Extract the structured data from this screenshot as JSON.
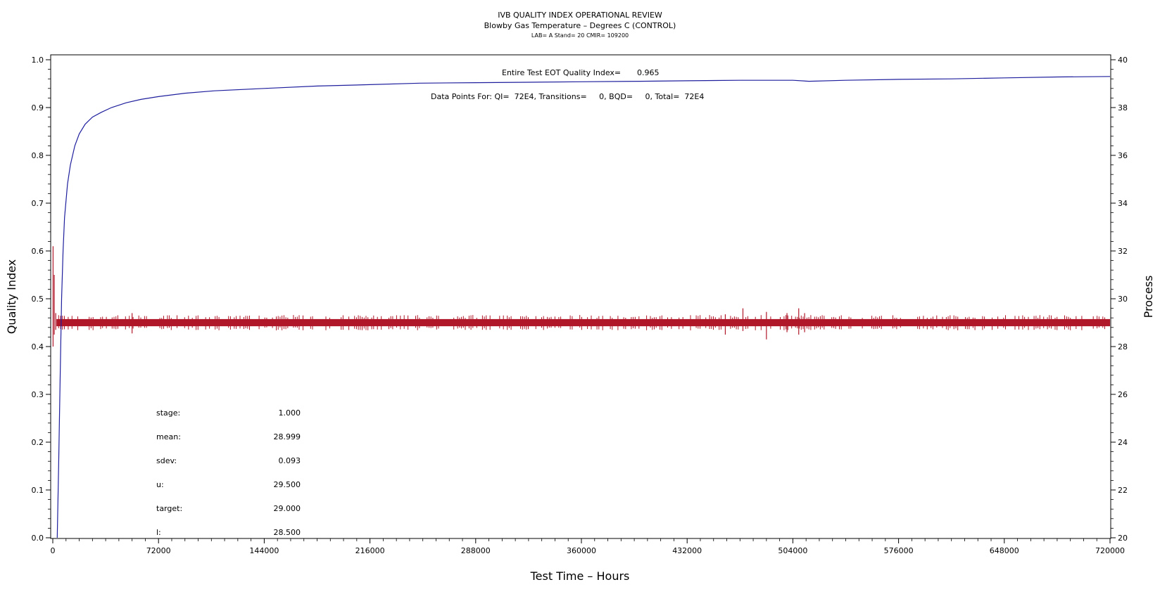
{
  "header": {
    "title": "IVB QUALITY INDEX OPERATIONAL REVIEW",
    "subtitle": "Blowby Gas Temperature – Degrees C (CONTROL)",
    "subsubtitle": "LAB= A Stand= 20 CMIR= 109200"
  },
  "annotations": {
    "eot_label": "Entire Test EOT Quality Index=",
    "eot_value": "0.965",
    "datapoints": "Data Points For: QI=  72E4, Transitions=     0, BQD=     0, Total=  72E4"
  },
  "stats": [
    {
      "label": "stage:",
      "value": "1.000"
    },
    {
      "label": "mean:",
      "value": "28.999"
    },
    {
      "label": "sdev:",
      "value": "0.093"
    },
    {
      "label": "u:",
      "value": "29.500"
    },
    {
      "label": "target:",
      "value": "29.000"
    },
    {
      "label": "l:",
      "value": "28.500"
    }
  ],
  "colors": {
    "quality_index": "#1f1f9e",
    "process": "#b0182a"
  },
  "chart_data": {
    "type": "line",
    "title": "IVB QUALITY INDEX OPERATIONAL REVIEW",
    "xlabel": "Test Time – Hours",
    "ylabel": "Quality Index",
    "y2label": "Process",
    "xlim": [
      0,
      720000
    ],
    "ylim": [
      0,
      1.0
    ],
    "y2lim": [
      20,
      40
    ],
    "x_ticks": [
      0,
      72000,
      144000,
      216000,
      288000,
      360000,
      432000,
      504000,
      576000,
      648000,
      720000
    ],
    "y_ticks": [
      "0.0",
      "0.1",
      "0.2",
      "0.3",
      "0.4",
      "0.5",
      "0.6",
      "0.7",
      "0.8",
      "0.9",
      "1.0"
    ],
    "y2_ticks": [
      20,
      22,
      24,
      26,
      28,
      30,
      32,
      34,
      36,
      38,
      40
    ],
    "grid": false,
    "series": [
      {
        "axis": "left",
        "x": [
          3000,
          4000,
          5000,
          6000,
          7000,
          8000,
          10000,
          12000,
          15000,
          18000,
          22000,
          27000,
          33000,
          40000,
          50000,
          60000,
          72000,
          90000,
          110000,
          144000,
          180000,
          216000,
          250000,
          288000,
          324000,
          360000,
          400000,
          432000,
          468000,
          504000,
          515000,
          540000,
          576000,
          612000,
          648000,
          684000,
          720000
        ],
        "values": [
          0.0,
          0.15,
          0.33,
          0.5,
          0.6,
          0.67,
          0.74,
          0.78,
          0.82,
          0.845,
          0.865,
          0.88,
          0.89,
          0.9,
          0.91,
          0.917,
          0.923,
          0.93,
          0.935,
          0.94,
          0.945,
          0.948,
          0.951,
          0.952,
          0.953,
          0.954,
          0.955,
          0.956,
          0.957,
          0.957,
          0.955,
          0.957,
          0.959,
          0.96,
          0.962,
          0.964,
          0.965
        ]
      },
      {
        "axis": "right",
        "mean": 28.999,
        "target": 29.0,
        "band": [
          28.85,
          29.15
        ],
        "spikes": [
          {
            "x": 200,
            "low": 28.0,
            "high": 32.2
          },
          {
            "x": 1000,
            "low": 28.5,
            "high": 31.0
          },
          {
            "x": 2000,
            "low": 28.7,
            "high": 29.4
          },
          {
            "x": 54000,
            "low": 28.55,
            "high": 29.4
          },
          {
            "x": 470000,
            "low": 28.65,
            "high": 29.6
          },
          {
            "x": 486000,
            "low": 28.3,
            "high": 29.45
          },
          {
            "x": 458000,
            "low": 28.5,
            "high": 29.35
          },
          {
            "x": 500000,
            "low": 28.6,
            "high": 29.4
          },
          {
            "x": 508000,
            "low": 28.5,
            "high": 29.6
          },
          {
            "x": 512000,
            "low": 28.6,
            "high": 29.4
          }
        ]
      }
    ]
  }
}
